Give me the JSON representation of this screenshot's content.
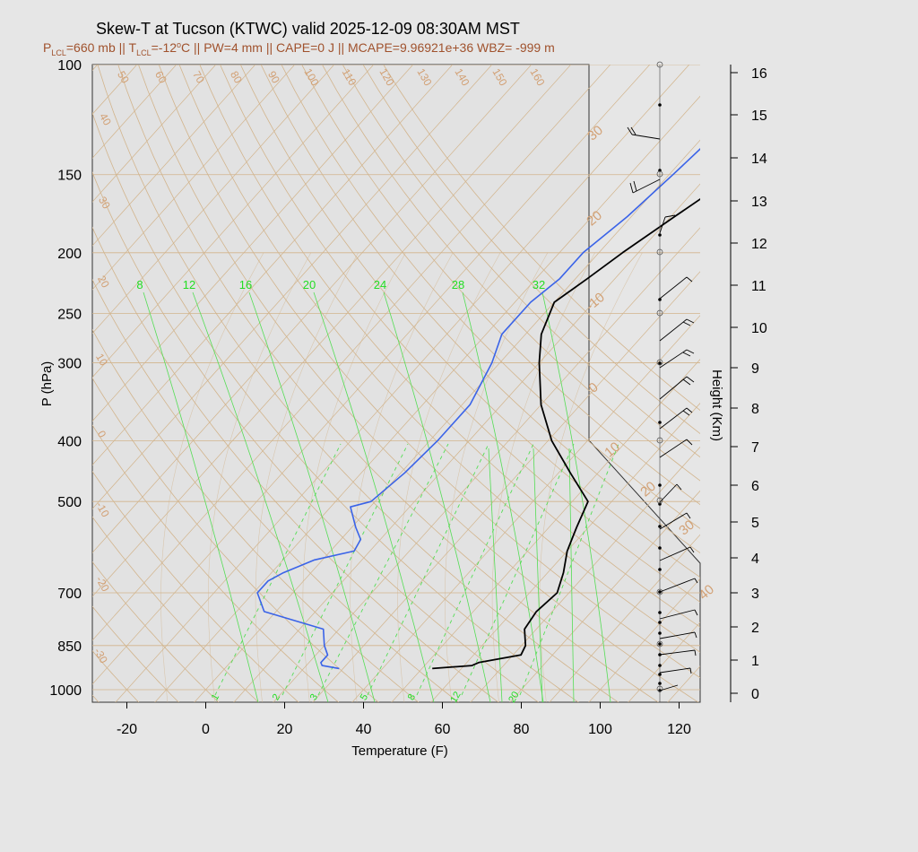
{
  "title": "Skew-T at Tucson (KTWC) valid 2025-12-09 08:30AM MST",
  "subtitle": {
    "plcl": "=660 mb || T",
    "tlcl": "=-12",
    "rest": "C || PW=4 mm || CAPE=0 J || MCAPE=9.96921e+36 WBZ= -999 m",
    "p": "P",
    "t": "T",
    "lcl": "LCL",
    "deg": "o"
  },
  "colors": {
    "temperature": "#000000",
    "dewpoint": "#3a63e8",
    "mixing_ratio": "#55dd55",
    "adiabat": "#d2b48c"
  },
  "chart_data": {
    "type": "line",
    "xlabel": "Temperature (F)",
    "ylabel": "P (hPa)",
    "y2label": "Height (Km)",
    "x_ticks": [
      "-20",
      "0",
      "20",
      "40",
      "60",
      "80",
      "100",
      "120"
    ],
    "p_ticks": [
      "100",
      "150",
      "200",
      "250",
      "300",
      "400",
      "500",
      "700",
      "850",
      "1000"
    ],
    "height_ticks": [
      "0",
      "1",
      "2",
      "3",
      "4",
      "5",
      "6",
      "7",
      "8",
      "9",
      "10",
      "11",
      "12",
      "13",
      "14",
      "15",
      "16"
    ],
    "dry_adiabat_labels": [
      "50",
      "60",
      "70",
      "80",
      "90",
      "100",
      "110",
      "120",
      "130",
      "140",
      "150",
      "160"
    ],
    "left_temp_labels": [
      "40",
      "30",
      "20",
      "10",
      "0",
      "-10",
      "-20",
      "-30"
    ],
    "isotherm_labels": [
      "30",
      "20",
      "-10",
      "0",
      "10",
      "20",
      "30",
      "40"
    ],
    "mixing_ratio_top": [
      "8",
      "12",
      "16",
      "20",
      "24",
      "28",
      "32"
    ],
    "mixing_ratio_bottom": [
      "1",
      "2",
      "3",
      "5",
      "8",
      "12",
      "20"
    ],
    "series": [
      {
        "role": "temperature",
        "pressure": [
          925,
          915,
          905,
          880,
          850,
          800,
          750,
          700,
          650,
          600,
          550,
          500,
          450,
          400,
          350,
          300,
          270,
          240,
          220,
          200,
          175,
          150,
          125,
          100
        ],
        "temp_f": [
          52.6,
          62,
          63,
          72,
          71,
          67,
          66,
          67,
          64,
          60,
          57,
          54,
          43,
          31,
          20,
          10,
          4,
          0,
          3,
          6,
          11,
          17,
          23,
          37
        ]
      },
      {
        "role": "dewpoint",
        "pressure": [
          925,
          915,
          905,
          880,
          850,
          800,
          750,
          700,
          670,
          650,
          620,
          600,
          575,
          550,
          510,
          500,
          450,
          400,
          350,
          300,
          270,
          240,
          220,
          200,
          175,
          150,
          125,
          100
        ],
        "dewpoint_f": [
          29,
          24,
          23,
          23,
          20,
          16,
          -3,
          -9,
          -9,
          -7,
          -2,
          6,
          5,
          1,
          -5,
          -1,
          1,
          2,
          2,
          -2,
          -6,
          -6,
          -4,
          -4,
          -1,
          1,
          3,
          18
        ]
      }
    ],
    "wind_barbs": "present at right side, one barb per level from ~0 to 15 km"
  }
}
